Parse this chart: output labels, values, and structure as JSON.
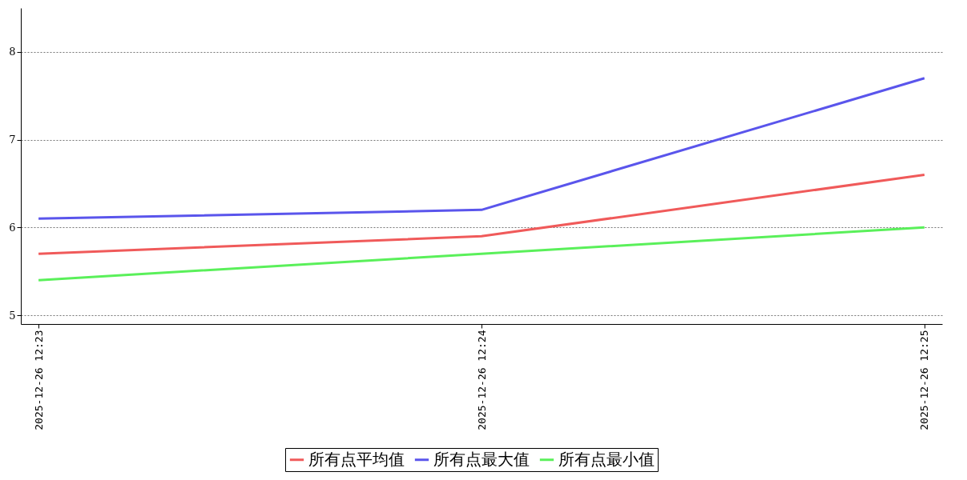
{
  "chart_data": {
    "type": "line",
    "categories": [
      "2025-12-26 12:23",
      "2025-12-26 12:24",
      "2025-12-26 12:25"
    ],
    "series": [
      {
        "name": "所有点平均值",
        "color": "#f05a5a",
        "values": [
          5.7,
          5.9,
          6.6
        ]
      },
      {
        "name": "所有点最大值",
        "color": "#5a55ec",
        "values": [
          6.1,
          6.2,
          7.7
        ]
      },
      {
        "name": "所有点最小值",
        "color": "#5af05a",
        "values": [
          5.4,
          5.7,
          6.0
        ]
      }
    ],
    "ylim": [
      4.9,
      8.5
    ],
    "yticks": [
      5,
      6,
      7,
      8
    ],
    "grid": "y",
    "legend": "bottom",
    "marker": "none",
    "line_style": "solid"
  }
}
